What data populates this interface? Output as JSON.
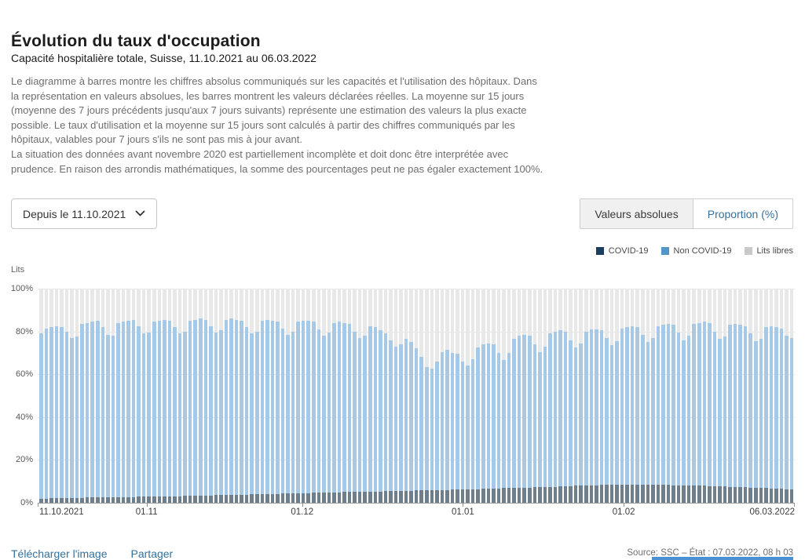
{
  "header": {
    "title": "Évolution du taux d'occupation",
    "subtitle": "Capacité hospitalière totale, Suisse, 11.10.2021 au 06.03.2022"
  },
  "description": {
    "para1": "Le diagramme à barres montre les chiffres absolus communiqués sur les capacités et l'utilisation des hôpitaux. Dans la représentation en valeurs absolues, les barres montrent les valeurs déclarées réelles. La moyenne sur 15 jours (moyenne des 7 jours précédents jusqu'aux 7 jours suivants) représente une estimation des valeurs la plus exacte possible. Le taux d'utilisation et la moyenne sur 15 jours sont calculés à partir des chiffres communiqués par les hôpitaux, valables pour 7 jours s'ils ne sont pas mis à jour avant.",
    "para2": "La situation des données avant novembre 2020 est partiellement incomplète et doit donc être interprétée avec prudence. En raison des arrondis mathématiques, la somme des pourcentages peut ne pas égaler exactement 100%."
  },
  "controls": {
    "period_dropdown": {
      "value": "Depuis le 11.10.2021"
    },
    "view_toggle": {
      "left": "Valeurs absolues",
      "right": "Proportion (%)",
      "highlighted": "Valeurs absolues"
    }
  },
  "legend": [
    {
      "label": "COVID-19",
      "color": "#1b3e5f"
    },
    {
      "label": "Non COVID-19",
      "color": "#4e96cc"
    },
    {
      "label": "Lits libres",
      "color": "#c9c9c9"
    }
  ],
  "chart_data": {
    "type": "bar",
    "stacked": true,
    "title": "Évolution du taux d'occupation",
    "subtitle": "Capacité hospitalière totale, Suisse, 11.10.2021 au 06.03.2022",
    "ylabel": "Lits",
    "unit": "%",
    "ylim": [
      0,
      100
    ],
    "grid": true,
    "legend_position": "top-right",
    "series_names": [
      "COVID-19",
      "Non COVID-19",
      "Lits libres"
    ],
    "colors": {
      "covid_bar": "#6e7e8b",
      "non_covid_bar": "#a7c9e8",
      "free_bar": "#e8e8e8"
    },
    "yticks": [
      {
        "label": "0%",
        "value": 0
      },
      {
        "label": "20%",
        "value": 20
      },
      {
        "label": "40%",
        "value": 40
      },
      {
        "label": "60%",
        "value": 60
      },
      {
        "label": "80%",
        "value": 80
      },
      {
        "label": "100%",
        "value": 100
      }
    ],
    "days_total": 146,
    "xticks": [
      {
        "label": "11.10.2021",
        "day": 0
      },
      {
        "label": "01.11",
        "day": 21
      },
      {
        "label": "01.12",
        "day": 51
      },
      {
        "label": "01.01",
        "day": 82
      },
      {
        "label": "01.02",
        "day": 113
      },
      {
        "label": "06.03.2022",
        "day": 146
      }
    ],
    "derivation": "Per day (11.10.2021→06.03.2022): COVID-19 = covid_pct, Non COVID-19 = occupied_pct - covid_pct, Lits libres = 100 - occupied_pct",
    "covid_pct": [
      2,
      2,
      2.1,
      2.1,
      2.2,
      2.2,
      2.2,
      2.3,
      2.3,
      2.4,
      2.4,
      2.5,
      2.5,
      2.5,
      2.6,
      2.6,
      2.7,
      2.7,
      2.7,
      2.8,
      2.8,
      2.8,
      2.9,
      2.9,
      3,
      3,
      3.1,
      3.1,
      3.2,
      3.2,
      3.3,
      3.3,
      3.4,
      3.4,
      3.5,
      3.5,
      3.6,
      3.7,
      3.7,
      3.8,
      3.8,
      3.9,
      4,
      4,
      4.1,
      4.1,
      4.2,
      4.3,
      4.3,
      4.4,
      4.4,
      4.5,
      4.5,
      4.6,
      4.6,
      4.7,
      4.8,
      4.8,
      4.9,
      5,
      5,
      5.1,
      5.1,
      5.2,
      5.2,
      5.3,
      5.3,
      5.4,
      5.4,
      5.5,
      5.5,
      5.6,
      5.6,
      5.7,
      5.7,
      5.8,
      5.9,
      5.9,
      6,
      6,
      6.1,
      6.1,
      6.2,
      6.3,
      6.3,
      6.4,
      6.5,
      6.5,
      6.6,
      6.7,
      6.8,
      6.8,
      6.9,
      7,
      7.1,
      7.1,
      7.2,
      7.3,
      7.4,
      7.4,
      7.5,
      7.6,
      7.7,
      7.8,
      7.9,
      8,
      8.1,
      8.1,
      8.2,
      8.3,
      8.4,
      8.4,
      8.5,
      8.5,
      8.6,
      8.6,
      8.6,
      8.5,
      8.5,
      8.4,
      8.4,
      8.3,
      8.3,
      8.2,
      8.1,
      8.1,
      8,
      8,
      7.9,
      7.9,
      7.8,
      7.8,
      7.7,
      7.6,
      7.5,
      7.4,
      7.3,
      7.2,
      7.1,
      7,
      6.9,
      6.8,
      6.7,
      6.6,
      6.5,
      6.4,
      6.3
    ],
    "occupied_pct": [
      79,
      81.5,
      82,
      82.5,
      82,
      80,
      77,
      77.5,
      83.5,
      84,
      84.5,
      85,
      82,
      78.5,
      78,
      84,
      84.5,
      85,
      85.5,
      82.5,
      79,
      79.5,
      84.5,
      85,
      85.5,
      85,
      82,
      79,
      80,
      85,
      85.5,
      86,
      85.5,
      82.5,
      79.5,
      80.5,
      85.5,
      86,
      85.5,
      85,
      82,
      79,
      80,
      85,
      85.5,
      85,
      84.5,
      81.5,
      78.5,
      80,
      84.5,
      85,
      85,
      84.5,
      81,
      78,
      79.5,
      84,
      84.5,
      84,
      83.5,
      80,
      77,
      78,
      82.5,
      82,
      80.5,
      79,
      76,
      73,
      74,
      76.5,
      75,
      72,
      68,
      63.5,
      62.5,
      66,
      70.5,
      71.5,
      70,
      69.5,
      66,
      64,
      67,
      72.5,
      74,
      74.5,
      74,
      70,
      66.5,
      70,
      76.5,
      78,
      78.5,
      78,
      74,
      70.5,
      73,
      79,
      80,
      80.5,
      80,
      76,
      72.5,
      74.5,
      80,
      81,
      81,
      80.5,
      77,
      73.5,
      75.5,
      81.5,
      82,
      82.5,
      82,
      78.5,
      75,
      77,
      82.5,
      83,
      83.5,
      83,
      79.5,
      76,
      78,
      83.5,
      84,
      84.5,
      84,
      80,
      76.5,
      77.5,
      83,
      83.5,
      83,
      82.5,
      79,
      75.5,
      76.5,
      82,
      82.5,
      82,
      81.5,
      78,
      77
    ]
  },
  "footer": {
    "download_label": "Télécharger l'image",
    "share_label": "Partager",
    "source": "Source: SSC – État : 07.03.2022, 08 h 03"
  }
}
